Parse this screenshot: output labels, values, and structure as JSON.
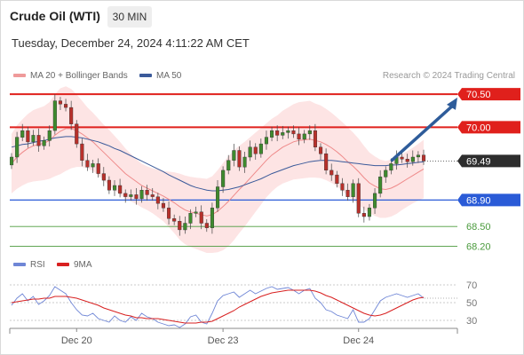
{
  "header": {
    "title": "Crude Oil (WTI)",
    "timeframe": "30 MIN",
    "datetime": "Tuesday, December 24, 2024 4:11:22 AM CET"
  },
  "legend": {
    "ma20_bb": "MA 20 + Bollinger Bands",
    "ma50": "MA 50",
    "credit": "Research © 2024 Trading Central",
    "ma20_color": "#ef8a8a",
    "ma50_color": "#3b5a9a"
  },
  "rsi_legend": {
    "rsi": "RSI",
    "ma9": "9MA",
    "rsi_color": "#6f86d6",
    "ma9_color": "#d82020"
  },
  "chart_data": {
    "type": "candlestick",
    "instrument": "Crude Oil (WTI)",
    "timeframe": "30 MIN",
    "ylim": [
      68.1,
      70.65
    ],
    "x_ticks": [
      {
        "label": "Dec 20",
        "t": 12
      },
      {
        "label": "Dec 23",
        "t": 39
      },
      {
        "label": "Dec 24",
        "t": 64
      }
    ],
    "levels": [
      {
        "value": 70.5,
        "label": "70.50",
        "kind": "resistance",
        "color": "#e0201c"
      },
      {
        "value": 70.0,
        "label": "70.00",
        "kind": "resistance",
        "color": "#e0201c"
      },
      {
        "value": 69.49,
        "label": "69.49",
        "kind": "last",
        "color": "#333333"
      },
      {
        "value": 68.9,
        "label": "68.90",
        "kind": "pivot",
        "color": "#2a5bd7"
      },
      {
        "value": 68.5,
        "label": "68.50",
        "kind": "support",
        "color": "#4a9a3c"
      },
      {
        "value": 68.2,
        "label": "68.20",
        "kind": "support",
        "color": "#4a9a3c"
      }
    ],
    "target_arrow": {
      "from_t": 70,
      "from": 69.49,
      "to_t": 74,
      "to": 70.45
    },
    "close": [
      69.55,
      69.85,
      69.95,
      69.78,
      69.88,
      69.72,
      69.8,
      69.95,
      70.4,
      70.35,
      70.3,
      70.05,
      69.75,
      69.5,
      69.4,
      69.45,
      69.3,
      69.2,
      69.05,
      69.12,
      69.0,
      68.95,
      68.98,
      68.92,
      69.05,
      68.98,
      68.95,
      68.85,
      68.78,
      68.62,
      68.58,
      68.45,
      68.55,
      68.7,
      68.72,
      68.55,
      68.48,
      68.78,
      69.1,
      69.35,
      69.5,
      69.65,
      69.4,
      69.55,
      69.7,
      69.6,
      69.75,
      69.85,
      69.95,
      69.88,
      69.92,
      69.95,
      69.9,
      69.82,
      69.9,
      69.95,
      69.7,
      69.6,
      69.35,
      69.28,
      69.15,
      69.05,
      68.95,
      69.15,
      68.7,
      68.65,
      68.78,
      69.0,
      69.25,
      69.35,
      69.45,
      69.55,
      69.52,
      69.48,
      69.55,
      69.58,
      69.49
    ],
    "ma20": [
      69.45,
      69.55,
      69.62,
      69.68,
      69.72,
      69.74,
      69.76,
      69.8,
      69.88,
      69.94,
      69.98,
      69.98,
      69.95,
      69.9,
      69.84,
      69.78,
      69.7,
      69.62,
      69.54,
      69.46,
      69.38,
      69.3,
      69.24,
      69.18,
      69.12,
      69.08,
      69.04,
      69.0,
      68.96,
      68.91,
      68.86,
      68.8,
      68.75,
      68.72,
      68.7,
      68.68,
      68.66,
      68.68,
      68.73,
      68.8,
      68.88,
      68.97,
      69.06,
      69.14,
      69.23,
      69.32,
      69.41,
      69.5,
      69.58,
      69.64,
      69.7,
      69.74,
      69.78,
      69.8,
      69.81,
      69.82,
      69.8,
      69.78,
      69.74,
      69.69,
      69.63,
      69.56,
      69.48,
      69.41,
      69.33,
      69.24,
      69.16,
      69.11,
      69.07,
      69.06,
      69.08,
      69.12,
      69.17,
      69.22,
      69.27,
      69.32,
      69.37
    ],
    "ma50": [
      69.7,
      69.72,
      69.74,
      69.75,
      69.77,
      69.79,
      69.8,
      69.82,
      69.84,
      69.85,
      69.86,
      69.86,
      69.85,
      69.84,
      69.82,
      69.8,
      69.78,
      69.75,
      69.72,
      69.68,
      69.65,
      69.61,
      69.57,
      69.53,
      69.49,
      69.45,
      69.41,
      69.37,
      69.33,
      69.28,
      69.24,
      69.2,
      69.16,
      69.12,
      69.09,
      69.07,
      69.05,
      69.04,
      69.04,
      69.05,
      69.06,
      69.08,
      69.1,
      69.13,
      69.16,
      69.19,
      69.22,
      69.26,
      69.3,
      69.33,
      69.36,
      69.39,
      69.42,
      69.44,
      69.46,
      69.48,
      69.49,
      69.5,
      69.5,
      69.5,
      69.49,
      69.48,
      69.47,
      69.46,
      69.45,
      69.44,
      69.43,
      69.42,
      69.42,
      69.42,
      69.43,
      69.43,
      69.44,
      69.45,
      69.46,
      69.47,
      69.48
    ],
    "bb_width": [
      0.45,
      0.48,
      0.5,
      0.52,
      0.54,
      0.55,
      0.56,
      0.58,
      0.62,
      0.65,
      0.64,
      0.6,
      0.55,
      0.5,
      0.46,
      0.44,
      0.43,
      0.42,
      0.42,
      0.41,
      0.4,
      0.38,
      0.36,
      0.34,
      0.33,
      0.33,
      0.34,
      0.36,
      0.38,
      0.42,
      0.46,
      0.5,
      0.52,
      0.53,
      0.54,
      0.55,
      0.56,
      0.58,
      0.62,
      0.66,
      0.68,
      0.68,
      0.66,
      0.64,
      0.62,
      0.6,
      0.58,
      0.56,
      0.55,
      0.54,
      0.55,
      0.56,
      0.57,
      0.58,
      0.58,
      0.58,
      0.56,
      0.55,
      0.54,
      0.53,
      0.52,
      0.52,
      0.52,
      0.51,
      0.5,
      0.48,
      0.46,
      0.45,
      0.44,
      0.43,
      0.43,
      0.43,
      0.42,
      0.42,
      0.42,
      0.43,
      0.44
    ],
    "rsi": {
      "ylim": [
        25,
        75
      ],
      "ticks": [
        70,
        50,
        30
      ],
      "rsi": [
        47,
        55,
        60,
        52,
        57,
        48,
        52,
        58,
        68,
        64,
        60,
        50,
        42,
        36,
        35,
        38,
        32,
        30,
        28,
        35,
        30,
        28,
        34,
        30,
        38,
        34,
        32,
        28,
        26,
        24,
        25,
        22,
        26,
        34,
        36,
        28,
        26,
        38,
        52,
        58,
        60,
        62,
        56,
        60,
        64,
        60,
        63,
        66,
        68,
        65,
        66,
        67,
        64,
        60,
        64,
        66,
        55,
        50,
        42,
        40,
        36,
        34,
        32,
        42,
        28,
        28,
        32,
        42,
        52,
        56,
        58,
        60,
        58,
        56,
        58,
        60,
        55
      ],
      "ma9": [
        50,
        51,
        52,
        53,
        54,
        54,
        55,
        55,
        57,
        57,
        57,
        56,
        55,
        53,
        51,
        49,
        47,
        44,
        42,
        40,
        38,
        36,
        35,
        33,
        33,
        32,
        32,
        32,
        31,
        30,
        29,
        28,
        27,
        27,
        27,
        28,
        28,
        29,
        32,
        35,
        38,
        41,
        45,
        48,
        51,
        54,
        57,
        59,
        61,
        62,
        63,
        64,
        64,
        64,
        64,
        64,
        63,
        61,
        58,
        56,
        53,
        50,
        47,
        44,
        41,
        38,
        36,
        35,
        36,
        38,
        41,
        44,
        47,
        50,
        53,
        55,
        56
      ]
    }
  }
}
